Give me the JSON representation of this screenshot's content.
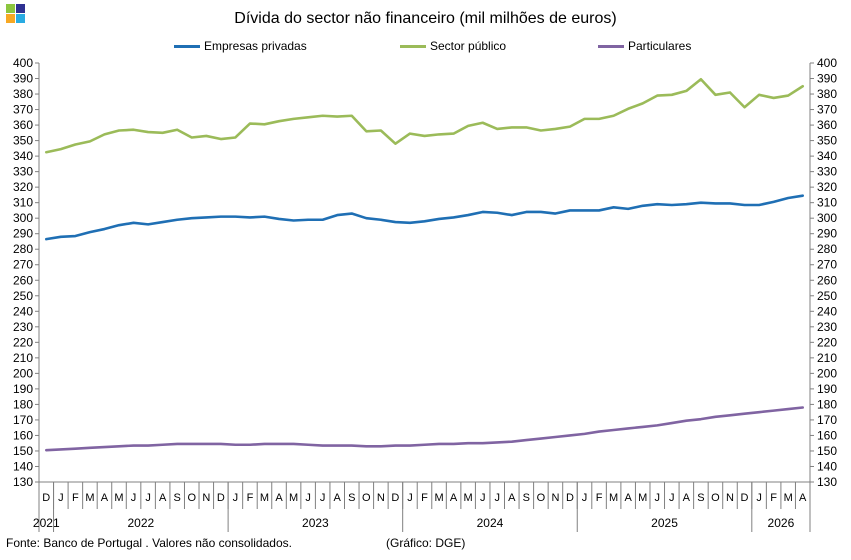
{
  "title": "Dívida do sector não financeiro (mil milhões  de euros)",
  "source": "Fonte: Banco de Portugal . Valores não consolidados.",
  "note": "(Gráfico: DGE)",
  "colors": {
    "logo": [
      "#8cc63f",
      "#2e3192",
      "#f7a823",
      "#29abe2"
    ],
    "empresas": "#1f6fb4",
    "publico": "#9bbb59",
    "particulares": "#8064a2",
    "axis": "#808080"
  },
  "chart_data": {
    "type": "line",
    "title": "Dívida do sector não financeiro (mil milhões  de euros)",
    "ylim": [
      130,
      400
    ],
    "y_ticks": [
      130,
      140,
      150,
      160,
      170,
      180,
      190,
      200,
      210,
      220,
      230,
      240,
      250,
      260,
      270,
      280,
      290,
      300,
      310,
      320,
      330,
      340,
      350,
      360,
      370,
      380,
      390,
      400
    ],
    "grid": false,
    "legend_position": "top",
    "month_labels": [
      "D",
      "J",
      "F",
      "M",
      "A",
      "M",
      "J",
      "J",
      "A",
      "S",
      "O",
      "N",
      "D",
      "J",
      "F",
      "M",
      "A",
      "M",
      "J",
      "J",
      "A",
      "S",
      "O",
      "N",
      "D",
      "J",
      "F",
      "M",
      "A",
      "M",
      "J",
      "J",
      "A",
      "S",
      "O",
      "N",
      "D",
      "J",
      "F",
      "M",
      "A",
      "M",
      "J",
      "J",
      "A",
      "S",
      "O",
      "N",
      "D",
      "J",
      "F",
      "M",
      "A"
    ],
    "year_labels": [
      "2021",
      "2022",
      "2023",
      "2024",
      "2025",
      "2026"
    ],
    "series": [
      {
        "name": "Empresas privadas",
        "values": [
          286.5,
          288,
          288.5,
          291,
          293,
          295.5,
          297,
          296,
          297.5,
          299,
          300,
          300.5,
          301,
          301,
          300.5,
          301,
          299.5,
          298.5,
          299,
          299,
          302,
          303,
          300,
          299,
          297.5,
          297,
          298,
          299.5,
          300.5,
          302,
          304,
          303.5,
          302,
          304,
          304,
          303,
          305,
          305,
          305,
          307,
          306,
          308,
          309,
          308.5,
          309,
          310,
          309.5,
          309.5,
          308.5,
          308.5,
          310.5,
          313,
          314.5
        ]
      },
      {
        "name": "Sector público",
        "values": [
          342.5,
          344.5,
          347.5,
          349.5,
          354,
          356.5,
          357,
          355.5,
          355,
          357,
          352,
          353,
          351,
          352,
          361,
          360.5,
          362.5,
          364,
          365,
          366,
          365.5,
          366,
          356,
          356.5,
          348,
          354.5,
          353,
          354,
          354.5,
          359.5,
          361.5,
          357.5,
          358.5,
          358.5,
          356.5,
          357.5,
          359,
          364,
          364,
          366,
          370.5,
          374,
          379,
          379.5,
          382,
          389.5,
          379.5,
          381,
          371.5,
          379.5,
          377.5,
          379,
          385
        ]
      },
      {
        "name": "Particulares",
        "values": [
          150.5,
          151,
          151.5,
          152,
          152.5,
          153,
          153.5,
          153.5,
          154,
          154.5,
          154.5,
          154.5,
          154.5,
          154,
          154,
          154.5,
          154.5,
          154.5,
          154,
          153.5,
          153.5,
          153.5,
          153,
          153,
          153.5,
          153.5,
          154,
          154.5,
          154.5,
          155,
          155,
          155.5,
          156,
          157,
          158,
          159,
          160,
          161,
          162.5,
          163.5,
          164.5,
          165.5,
          166.5,
          168,
          169.5,
          170.5,
          172,
          173,
          174,
          175,
          176,
          177,
          178
        ]
      }
    ]
  }
}
